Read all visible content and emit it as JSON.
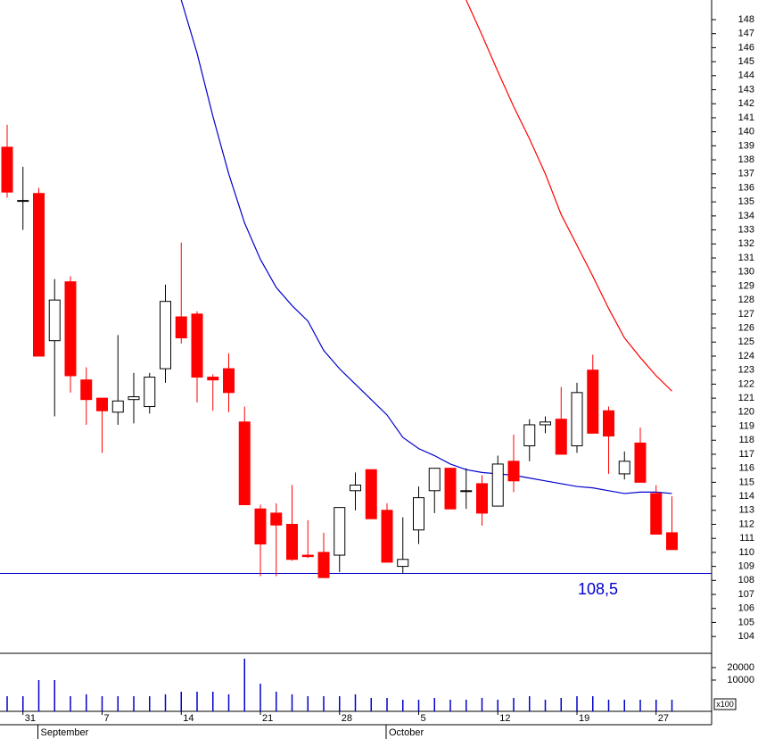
{
  "chart_data": {
    "type": "candlestick",
    "categories": [
      null,
      "31",
      null,
      null,
      null,
      null,
      "7",
      null,
      null,
      null,
      null,
      "14",
      null,
      null,
      null,
      null,
      "21",
      null,
      null,
      null,
      null,
      "28",
      null,
      null,
      null,
      null,
      "5",
      null,
      null,
      null,
      null,
      "12",
      null,
      null,
      null,
      null,
      "19",
      null,
      null,
      null,
      null,
      "27",
      null
    ],
    "months": [
      null,
      null,
      "September",
      null,
      null,
      null,
      null,
      null,
      null,
      null,
      null,
      null,
      null,
      null,
      null,
      null,
      null,
      null,
      null,
      null,
      null,
      null,
      null,
      null,
      "October",
      null,
      null,
      null,
      null,
      null,
      null,
      null,
      null,
      null,
      null,
      null,
      null,
      null,
      null,
      null,
      null,
      null,
      null
    ],
    "open": [
      138.9,
      135.1,
      135.6,
      125.1,
      129.3,
      122.3,
      121.0,
      120.0,
      120.9,
      120.4,
      123.1,
      126.8,
      127.0,
      122.5,
      123.1,
      119.3,
      113.1,
      112.8,
      112.0,
      109.8,
      110.0,
      109.8,
      114.4,
      115.9,
      113.0,
      109.0,
      111.6,
      114.4,
      116.0,
      114.4,
      114.9,
      113.3,
      116.5,
      117.6,
      119.1,
      119.5,
      117.6,
      123.0,
      120.1,
      115.6,
      117.8,
      114.2,
      111.4
    ],
    "high": [
      140.5,
      137.5,
      136.0,
      129.5,
      129.7,
      123.2,
      121.0,
      125.5,
      122.8,
      122.8,
      129.1,
      132.1,
      127.2,
      122.7,
      124.2,
      120.4,
      113.4,
      113.5,
      114.8,
      112.3,
      111.4,
      113.2,
      115.7,
      115.9,
      113.5,
      112.5,
      114.7,
      116.0,
      116.0,
      116.0,
      115.5,
      116.9,
      118.4,
      119.5,
      119.7,
      121.8,
      122.1,
      124.1,
      120.4,
      117.2,
      118.9,
      114.8,
      114.0
    ],
    "low": [
      135.3,
      133.0,
      124.0,
      119.7,
      121.4,
      119.1,
      117.1,
      119.1,
      119.2,
      119.9,
      122.1,
      124.9,
      120.7,
      120.1,
      120.0,
      113.4,
      108.3,
      108.3,
      109.4,
      109.6,
      108.2,
      108.6,
      113.0,
      112.4,
      109.3,
      108.5,
      110.6,
      112.8,
      113.1,
      113.1,
      111.9,
      113.3,
      114.3,
      116.5,
      118.5,
      117.0,
      117.1,
      118.5,
      115.6,
      115.2,
      115.0,
      111.3,
      110.2
    ],
    "close": [
      135.7,
      135.1,
      124.0,
      128.0,
      122.6,
      120.9,
      120.1,
      120.8,
      121.1,
      122.5,
      127.9,
      125.3,
      122.5,
      122.3,
      121.4,
      113.4,
      110.6,
      111.95,
      109.5,
      109.7,
      108.2,
      113.2,
      114.8,
      112.4,
      109.3,
      109.5,
      113.9,
      116.0,
      113.1,
      114.4,
      112.8,
      116.3,
      115.1,
      119.1,
      119.3,
      117.0,
      121.4,
      118.5,
      118.3,
      116.5,
      115.0,
      111.3,
      110.2
    ],
    "up_color": "#ffffff",
    "down_color": "#ff0000",
    "series": [
      {
        "color": "#0000cc",
        "values": [
          null,
          null,
          null,
          null,
          null,
          null,
          null,
          null,
          null,
          null,
          null,
          149.4,
          145.6,
          141.1,
          137.0,
          133.5,
          130.9,
          128.9,
          127.6,
          126.5,
          124.4,
          123.1,
          122.0,
          120.9,
          119.8,
          118.2,
          117.4,
          116.9,
          116.3,
          115.9,
          115.7,
          115.6,
          115.5,
          115.3,
          115.1,
          114.9,
          114.7,
          114.6,
          114.4,
          114.2,
          114.3,
          114.3,
          114.2
        ]
      },
      {
        "color": "#ff0000",
        "values": [
          null,
          null,
          null,
          null,
          null,
          null,
          null,
          null,
          null,
          null,
          null,
          null,
          null,
          null,
          null,
          null,
          null,
          null,
          null,
          null,
          null,
          null,
          null,
          null,
          null,
          null,
          null,
          null,
          null,
          149.4,
          146.9,
          144.3,
          141.8,
          139.5,
          137.0,
          134.1,
          131.9,
          129.7,
          127.4,
          125.3,
          123.9,
          122.6,
          121.5
        ]
      }
    ],
    "hline": {
      "value": 108.5,
      "label": "108,5",
      "color": "#0000cc"
    },
    "ylim": [
      102.8,
      149.4
    ],
    "yticks": [
      104,
      105,
      106,
      107,
      108,
      109,
      110,
      111,
      112,
      113,
      114,
      115,
      116,
      117,
      118,
      119,
      120,
      121,
      122,
      123,
      124,
      125,
      126,
      127,
      128,
      129,
      130,
      131,
      132,
      133,
      134,
      135,
      136,
      137,
      138,
      139,
      140,
      141,
      142,
      143,
      144,
      145,
      146,
      147,
      148
    ],
    "volume": {
      "color": "#0000cc",
      "unit_label": "x100",
      "ylim": [
        -15000,
        31400
      ],
      "yticks": [
        10000,
        20000
      ],
      "values": [
        -2900,
        -2900,
        10000,
        10000,
        -2900,
        -1400,
        -2900,
        -2900,
        -2900,
        -2900,
        -1400,
        700,
        700,
        700,
        -1400,
        27100,
        7100,
        700,
        -1400,
        -2900,
        -2900,
        -2900,
        -1400,
        -4300,
        -4300,
        -5700,
        -5700,
        -4300,
        -5700,
        -5700,
        -4300,
        -5700,
        -4300,
        -2900,
        -5700,
        -4300,
        -2900,
        -2900,
        -5700,
        -5700,
        -5700,
        -5700,
        -5700
      ]
    }
  }
}
